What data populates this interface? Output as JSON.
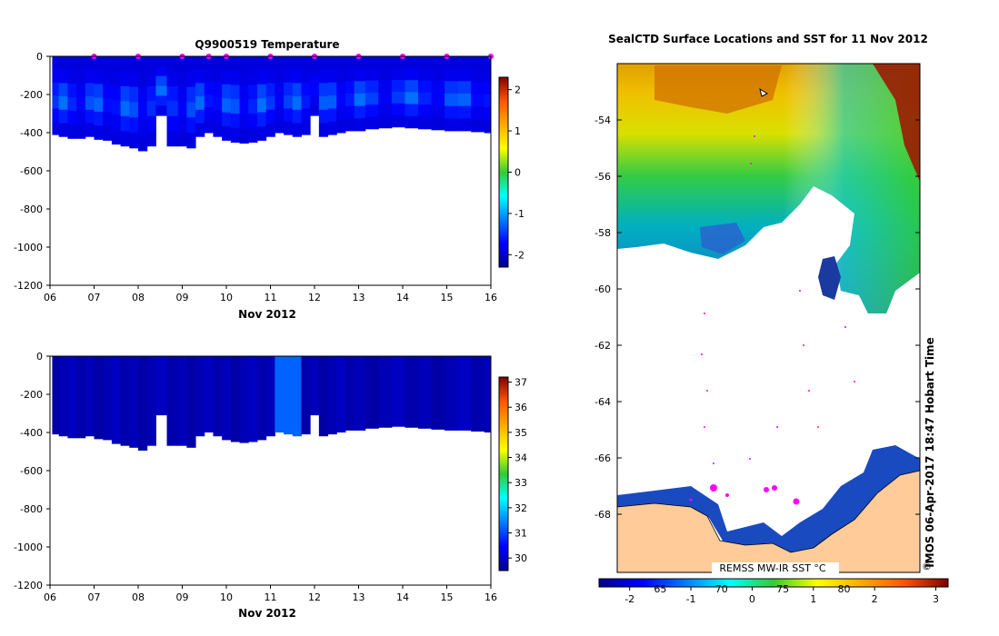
{
  "chart_data": [
    {
      "type": "heatmap",
      "title": "Q9900519  Temperature",
      "xlabel": "Nov 2012",
      "ylabel": "",
      "xlim": [
        6,
        16
      ],
      "ylim": [
        -1200,
        0
      ],
      "x_ticks": [
        "06",
        "07",
        "08",
        "09",
        "10",
        "11",
        "12",
        "13",
        "14",
        "15",
        "16"
      ],
      "y_ticks": [
        "0",
        "-200",
        "-400",
        "-600",
        "-800",
        "-1000",
        "-1200"
      ],
      "colorbar": {
        "min": -2.3,
        "max": 2.3,
        "ticks": [
          "2",
          "1",
          "0",
          "-1",
          "-2"
        ]
      },
      "profile_days": [
        6.1,
        6.3,
        6.5,
        6.7,
        6.9,
        7.1,
        7.3,
        7.5,
        7.7,
        7.9,
        8.1,
        8.3,
        8.5,
        8.8,
        9.0,
        9.2,
        9.4,
        9.6,
        9.8,
        10.0,
        10.2,
        10.4,
        10.6,
        10.8,
        11.0,
        11.2,
        11.4,
        11.6,
        11.8,
        12.0,
        12.2,
        12.4,
        12.6,
        12.8,
        13.0,
        13.3,
        13.6,
        13.9,
        14.2,
        14.5,
        14.8,
        15.1,
        15.4,
        15.7,
        16.0
      ],
      "max_depth_m": [
        410,
        420,
        430,
        430,
        420,
        435,
        440,
        460,
        470,
        480,
        495,
        470,
        310,
        470,
        470,
        480,
        420,
        400,
        420,
        440,
        450,
        455,
        450,
        440,
        420,
        400,
        410,
        420,
        410,
        310,
        420,
        410,
        400,
        390,
        390,
        380,
        375,
        370,
        375,
        380,
        385,
        390,
        390,
        395,
        400
      ],
      "float_markers_days": [
        7.0,
        8.0,
        9.0,
        9.6,
        10.0,
        11.0,
        12.0,
        13.0,
        14.0,
        15.0,
        16.0
      ]
    },
    {
      "type": "heatmap",
      "title": "",
      "xlabel": "Nov 2012",
      "ylabel": "",
      "xlim": [
        6,
        16
      ],
      "ylim": [
        -1200,
        0
      ],
      "x_ticks": [
        "06",
        "07",
        "08",
        "09",
        "10",
        "11",
        "12",
        "13",
        "14",
        "15",
        "16"
      ],
      "y_ticks": [
        "0",
        "-200",
        "-400",
        "-600",
        "-800",
        "-1000",
        "-1200"
      ],
      "colorbar": {
        "min": 29.5,
        "max": 37.2,
        "ticks": [
          "37",
          "36",
          "35",
          "34",
          "33",
          "32",
          "31",
          "30"
        ]
      },
      "high_value_column_days": [
        11.3,
        11.5
      ]
    },
    {
      "type": "heatmap",
      "title": "SealCTD Surface Locations and SST for 11 Nov 2012",
      "xlabel": "",
      "ylabel": "",
      "lat_ticks": [
        "-54",
        "-56",
        "-58",
        "-60",
        "-62",
        "-64",
        "-66",
        "-68"
      ],
      "inner_label": "REMSS MW-IR SST °C",
      "colorbar": {
        "min": -2.5,
        "max": 3.2,
        "value_ticks": [
          "-2",
          "-1",
          "0",
          "1",
          "2",
          "3"
        ],
        "lon_ticks": [
          "65",
          "70",
          "75",
          "80"
        ]
      }
    }
  ],
  "credit": "IMOS 06-Apr-2017 18:47 Hobart Time",
  "copyright": "©",
  "colors": {
    "background": "#ffffff",
    "land": "#ffcc99",
    "deep_blue": "#00008b",
    "track_magenta": "#ff00ff"
  }
}
